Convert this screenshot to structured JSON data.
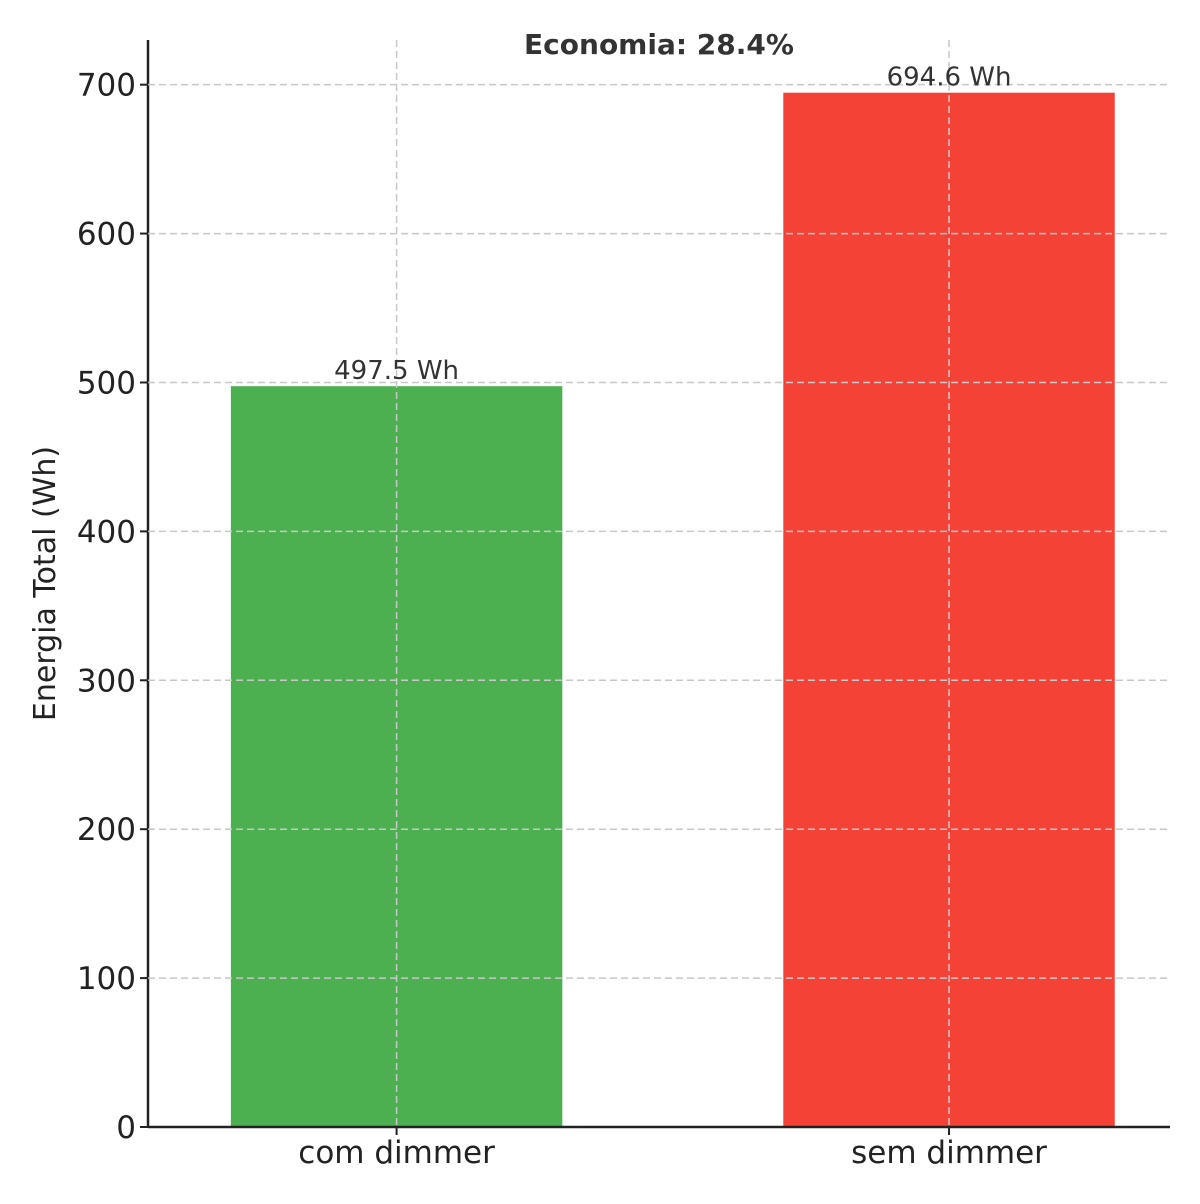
{
  "chart_data": {
    "type": "bar",
    "categories": [
      "com dimmer",
      "sem dimmer"
    ],
    "values": [
      497.5,
      694.6
    ],
    "value_labels": [
      "497.5 Wh",
      "694.6 Wh"
    ],
    "colors": [
      "#4caf50",
      "#f44336"
    ],
    "title": "",
    "annotation": "Economia: 28.4%",
    "xlabel": "",
    "ylabel": "Energia Total (Wh)",
    "ylim": [
      0,
      730
    ],
    "yticks": [
      0,
      100,
      200,
      300,
      400,
      500,
      600,
      700
    ],
    "grid": true
  }
}
